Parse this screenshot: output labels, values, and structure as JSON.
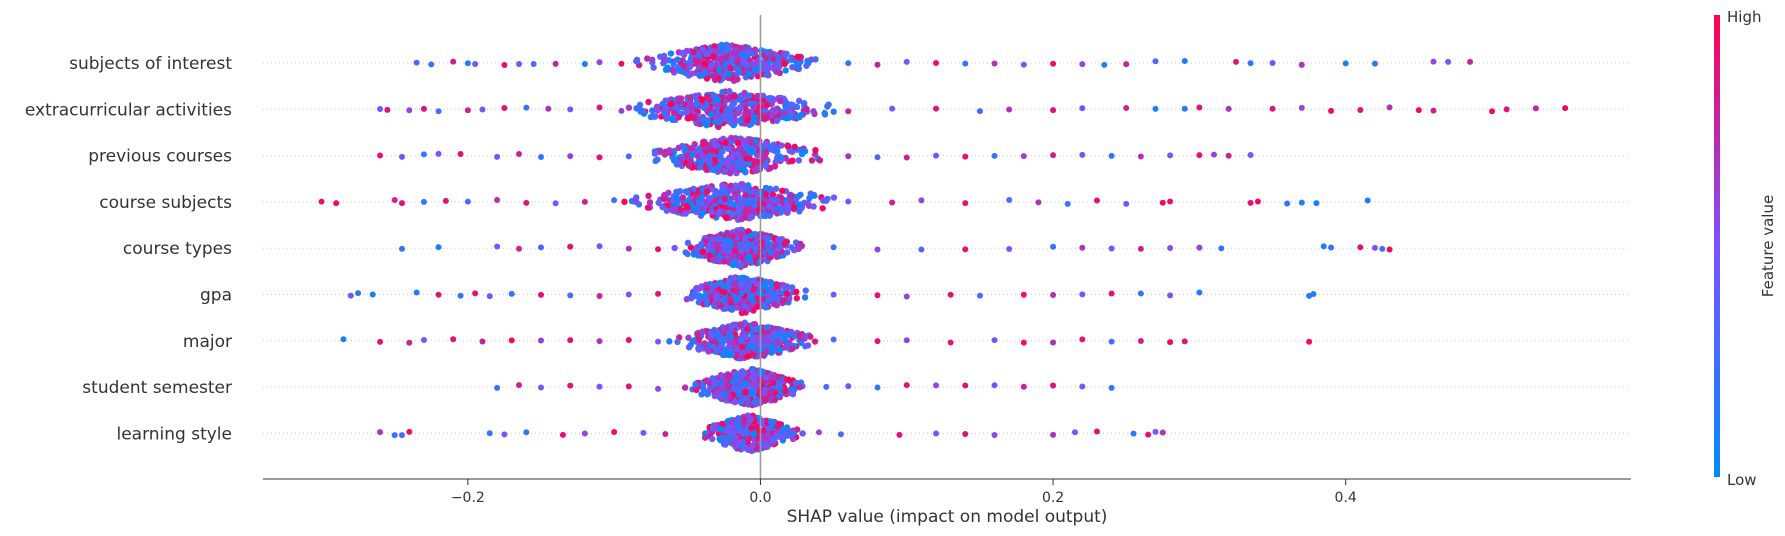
{
  "chart_data": {
    "type": "scatter",
    "subtype": "shap-beeswarm",
    "title": "",
    "xlabel": "SHAP value (impact on model output)",
    "ylabel": "",
    "xlim": [
      -0.34,
      0.595
    ],
    "x_ticks": [
      -0.2,
      0.0,
      0.2,
      0.4
    ],
    "x_tick_labels": [
      "−0.2",
      "0.0",
      "0.2",
      "0.4"
    ],
    "grid": false,
    "zero_line": true,
    "colorbar": {
      "label": "Feature value",
      "high_label": "High",
      "low_label": "Low",
      "low_color": "#008bfb",
      "mid_color": "#7c52ff",
      "high_color": "#ff0052"
    },
    "features": [
      {
        "name": "subjects of interest",
        "core": [
          -0.055,
          0.01
        ],
        "points": [
          [
            -0.235,
            0.4
          ],
          [
            -0.225,
            0.2
          ],
          [
            -0.21,
            0.8
          ],
          [
            -0.2,
            0.1
          ],
          [
            -0.195,
            0.4
          ],
          [
            -0.175,
            0.9
          ],
          [
            -0.165,
            0.5
          ],
          [
            -0.155,
            0.3
          ],
          [
            -0.14,
            0.8
          ],
          [
            -0.12,
            0.1
          ],
          [
            -0.11,
            0.6
          ],
          [
            -0.095,
            0.9
          ],
          [
            -0.085,
            0.3
          ],
          [
            0.06,
            0.2
          ],
          [
            0.08,
            0.8
          ],
          [
            0.1,
            0.5
          ],
          [
            0.12,
            0.9
          ],
          [
            0.14,
            0.2
          ],
          [
            0.16,
            0.7
          ],
          [
            0.18,
            0.4
          ],
          [
            0.2,
            0.9
          ],
          [
            0.22,
            0.6
          ],
          [
            0.235,
            0.1
          ],
          [
            0.25,
            0.8
          ],
          [
            0.27,
            0.3
          ],
          [
            0.29,
            0.1
          ],
          [
            0.325,
            0.9
          ],
          [
            0.335,
            0.2
          ],
          [
            0.35,
            0.4
          ],
          [
            0.37,
            0.7
          ],
          [
            0.4,
            0.1
          ],
          [
            0.42,
            0.2
          ],
          [
            0.46,
            0.6
          ],
          [
            0.47,
            0.5
          ],
          [
            0.485,
            0.8
          ]
        ]
      },
      {
        "name": "extracurricular activities",
        "core": [
          -0.06,
          0.015
        ],
        "points": [
          [
            -0.26,
            0.4
          ],
          [
            -0.255,
            0.9
          ],
          [
            -0.24,
            0.6
          ],
          [
            -0.23,
            0.9
          ],
          [
            -0.22,
            0.3
          ],
          [
            -0.2,
            0.8
          ],
          [
            -0.19,
            0.5
          ],
          [
            -0.175,
            0.9
          ],
          [
            -0.16,
            0.2
          ],
          [
            -0.145,
            0.7
          ],
          [
            -0.13,
            0.4
          ],
          [
            -0.11,
            0.9
          ],
          [
            -0.095,
            0.6
          ],
          [
            -0.08,
            0.3
          ],
          [
            0.06,
            0.8
          ],
          [
            0.09,
            0.5
          ],
          [
            0.12,
            0.9
          ],
          [
            0.15,
            0.3
          ],
          [
            0.17,
            0.7
          ],
          [
            0.2,
            0.9
          ],
          [
            0.22,
            0.4
          ],
          [
            0.25,
            0.8
          ],
          [
            0.27,
            0.1
          ],
          [
            0.29,
            0.2
          ],
          [
            0.3,
            0.9
          ],
          [
            0.32,
            0.7
          ],
          [
            0.35,
            0.9
          ],
          [
            0.37,
            0.6
          ],
          [
            0.39,
            0.95
          ],
          [
            0.41,
            0.9
          ],
          [
            0.43,
            0.7
          ],
          [
            0.45,
            0.95
          ],
          [
            0.46,
            0.8
          ],
          [
            0.5,
            0.95
          ],
          [
            0.51,
            0.9
          ],
          [
            0.53,
            0.8
          ],
          [
            0.55,
            0.95
          ]
        ]
      },
      {
        "name": "previous courses",
        "core": [
          -0.05,
          0.015
        ],
        "points": [
          [
            -0.26,
            0.9
          ],
          [
            -0.245,
            0.4
          ],
          [
            -0.23,
            0.2
          ],
          [
            -0.22,
            0.5
          ],
          [
            -0.205,
            0.9
          ],
          [
            -0.18,
            0.4
          ],
          [
            -0.165,
            0.8
          ],
          [
            -0.15,
            0.2
          ],
          [
            -0.13,
            0.6
          ],
          [
            -0.11,
            0.9
          ],
          [
            -0.09,
            0.3
          ],
          [
            0.06,
            0.7
          ],
          [
            0.08,
            0.3
          ],
          [
            0.1,
            0.8
          ],
          [
            0.12,
            0.5
          ],
          [
            0.14,
            0.9
          ],
          [
            0.16,
            0.2
          ],
          [
            0.18,
            0.6
          ],
          [
            0.2,
            0.8
          ],
          [
            0.22,
            0.4
          ],
          [
            0.24,
            0.2
          ],
          [
            0.26,
            0.7
          ],
          [
            0.28,
            0.5
          ],
          [
            0.3,
            0.9
          ],
          [
            0.31,
            0.6
          ],
          [
            0.32,
            0.8
          ],
          [
            0.335,
            0.5
          ]
        ]
      },
      {
        "name": "course subjects",
        "core": [
          -0.055,
          0.02
        ],
        "points": [
          [
            -0.3,
            0.9
          ],
          [
            -0.29,
            0.95
          ],
          [
            -0.25,
            0.8
          ],
          [
            -0.245,
            0.9
          ],
          [
            -0.23,
            0.2
          ],
          [
            -0.215,
            0.9
          ],
          [
            -0.2,
            0.3
          ],
          [
            -0.18,
            0.7
          ],
          [
            -0.16,
            0.9
          ],
          [
            -0.14,
            0.5
          ],
          [
            -0.12,
            0.8
          ],
          [
            -0.1,
            0.3
          ],
          [
            -0.085,
            0.6
          ],
          [
            0.06,
            0.4
          ],
          [
            0.09,
            0.8
          ],
          [
            0.11,
            0.6
          ],
          [
            0.14,
            0.9
          ],
          [
            0.17,
            0.3
          ],
          [
            0.19,
            0.7
          ],
          [
            0.21,
            0.2
          ],
          [
            0.23,
            0.9
          ],
          [
            0.25,
            0.5
          ],
          [
            0.275,
            0.95
          ],
          [
            0.28,
            0.9
          ],
          [
            0.335,
            0.9
          ],
          [
            0.34,
            0.95
          ],
          [
            0.36,
            0.2
          ],
          [
            0.37,
            0.1
          ],
          [
            0.38,
            0.1
          ],
          [
            0.415,
            0.1
          ]
        ]
      },
      {
        "name": "course types",
        "core": [
          -0.035,
          0.01
        ],
        "points": [
          [
            -0.245,
            0.2
          ],
          [
            -0.22,
            0.1
          ],
          [
            -0.18,
            0.5
          ],
          [
            -0.165,
            0.8
          ],
          [
            -0.15,
            0.3
          ],
          [
            -0.13,
            0.9
          ],
          [
            -0.11,
            0.4
          ],
          [
            -0.09,
            0.7
          ],
          [
            -0.07,
            0.9
          ],
          [
            0.05,
            0.2
          ],
          [
            0.08,
            0.6
          ],
          [
            0.11,
            0.3
          ],
          [
            0.14,
            0.9
          ],
          [
            0.17,
            0.5
          ],
          [
            0.2,
            0.2
          ],
          [
            0.22,
            0.7
          ],
          [
            0.24,
            0.4
          ],
          [
            0.26,
            0.8
          ],
          [
            0.28,
            0.5
          ],
          [
            0.3,
            0.6
          ],
          [
            0.315,
            0.2
          ],
          [
            0.385,
            0.1
          ],
          [
            0.39,
            0.2
          ],
          [
            0.41,
            0.9
          ],
          [
            0.42,
            0.5
          ],
          [
            0.425,
            0.2
          ],
          [
            0.43,
            0.95
          ]
        ]
      },
      {
        "name": "gpa",
        "core": [
          -0.035,
          0.01
        ],
        "points": [
          [
            -0.28,
            0.5
          ],
          [
            -0.275,
            0.2
          ],
          [
            -0.265,
            0.1
          ],
          [
            -0.235,
            0.1
          ],
          [
            -0.22,
            0.9
          ],
          [
            -0.205,
            0.2
          ],
          [
            -0.195,
            0.9
          ],
          [
            -0.185,
            0.4
          ],
          [
            -0.17,
            0.2
          ],
          [
            -0.15,
            0.9
          ],
          [
            -0.13,
            0.3
          ],
          [
            -0.11,
            0.8
          ],
          [
            -0.09,
            0.5
          ],
          [
            -0.07,
            0.9
          ],
          [
            0.05,
            0.4
          ],
          [
            0.08,
            0.9
          ],
          [
            0.1,
            0.6
          ],
          [
            0.13,
            0.9
          ],
          [
            0.15,
            0.3
          ],
          [
            0.18,
            0.9
          ],
          [
            0.2,
            0.7
          ],
          [
            0.22,
            0.4
          ],
          [
            0.24,
            0.9
          ],
          [
            0.26,
            0.2
          ],
          [
            0.28,
            0.5
          ],
          [
            0.3,
            0.1
          ],
          [
            0.375,
            0.1
          ],
          [
            0.378,
            0.1
          ]
        ]
      },
      {
        "name": "major",
        "core": [
          -0.035,
          0.015
        ],
        "points": [
          [
            -0.285,
            0.1
          ],
          [
            -0.26,
            0.9
          ],
          [
            -0.24,
            0.8
          ],
          [
            -0.23,
            0.4
          ],
          [
            -0.21,
            0.9
          ],
          [
            -0.19,
            0.8
          ],
          [
            -0.17,
            0.95
          ],
          [
            -0.15,
            0.6
          ],
          [
            -0.13,
            0.9
          ],
          [
            -0.11,
            0.7
          ],
          [
            -0.09,
            0.9
          ],
          [
            -0.07,
            0.5
          ],
          [
            0.05,
            0.3
          ],
          [
            0.08,
            0.9
          ],
          [
            0.1,
            0.6
          ],
          [
            0.13,
            0.9
          ],
          [
            0.16,
            0.4
          ],
          [
            0.18,
            0.9
          ],
          [
            0.2,
            0.7
          ],
          [
            0.22,
            0.9
          ],
          [
            0.24,
            0.3
          ],
          [
            0.26,
            0.8
          ],
          [
            0.28,
            0.95
          ],
          [
            0.29,
            0.9
          ],
          [
            0.375,
            0.95
          ]
        ]
      },
      {
        "name": "student semester",
        "core": [
          -0.03,
          0.015
        ],
        "points": [
          [
            -0.18,
            0.2
          ],
          [
            -0.165,
            0.8
          ],
          [
            -0.15,
            0.4
          ],
          [
            -0.13,
            0.9
          ],
          [
            -0.11,
            0.5
          ],
          [
            -0.09,
            0.9
          ],
          [
            -0.07,
            0.6
          ],
          [
            0.045,
            0.3
          ],
          [
            0.06,
            0.4
          ],
          [
            0.08,
            0.2
          ],
          [
            0.1,
            0.9
          ],
          [
            0.12,
            0.6
          ],
          [
            0.14,
            0.9
          ],
          [
            0.16,
            0.4
          ],
          [
            0.18,
            0.8
          ],
          [
            0.2,
            0.9
          ],
          [
            0.22,
            0.5
          ],
          [
            0.24,
            0.2
          ]
        ]
      },
      {
        "name": "learning style",
        "core": [
          -0.025,
          0.01
        ],
        "points": [
          [
            -0.26,
            0.7
          ],
          [
            -0.25,
            0.2
          ],
          [
            -0.245,
            0.3
          ],
          [
            -0.24,
            0.95
          ],
          [
            -0.185,
            0.2
          ],
          [
            -0.175,
            0.5
          ],
          [
            -0.16,
            0.2
          ],
          [
            -0.135,
            0.9
          ],
          [
            -0.12,
            0.6
          ],
          [
            -0.1,
            0.9
          ],
          [
            -0.08,
            0.5
          ],
          [
            -0.065,
            0.8
          ],
          [
            0.04,
            0.6
          ],
          [
            0.055,
            0.3
          ],
          [
            0.095,
            0.9
          ],
          [
            0.12,
            0.5
          ],
          [
            0.14,
            0.9
          ],
          [
            0.16,
            0.6
          ],
          [
            0.2,
            0.7
          ],
          [
            0.215,
            0.4
          ],
          [
            0.23,
            0.9
          ],
          [
            0.255,
            0.2
          ],
          [
            0.265,
            0.9
          ],
          [
            0.27,
            0.5
          ],
          [
            0.275,
            0.7
          ]
        ]
      }
    ]
  }
}
